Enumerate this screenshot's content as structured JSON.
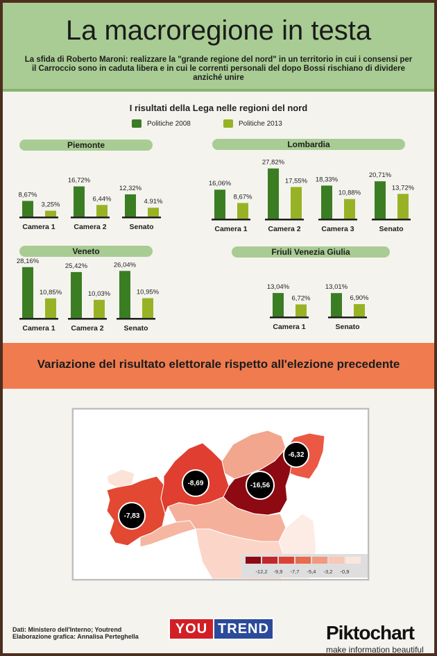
{
  "header": {
    "title": "La macroregione in testa",
    "subtitle": "La sfida di Roberto Maroni: realizzare la \"grande regione del nord\" in un territorio in cui i consensi per il Carroccio sono in caduta libera e in cui le correnti personali del dopo Bossi rischiano di dividere anziché unire"
  },
  "results": {
    "title": "I risultati della Lega nelle regioni del nord",
    "legend": [
      {
        "label": "Politiche 2008",
        "color": "#3b7d23"
      },
      {
        "label": "Politiche 2013",
        "color": "#98b225"
      }
    ]
  },
  "chart_data": [
    {
      "type": "bar",
      "title": "Piemonte",
      "categories": [
        "Camera 1",
        "Camera 2",
        "Senato"
      ],
      "series": [
        {
          "name": "Politiche 2008",
          "values": [
            8.67,
            16.72,
            12.32
          ],
          "labels": [
            "8,67%",
            "16,72%",
            "12,32%"
          ]
        },
        {
          "name": "Politiche 2013",
          "values": [
            3.25,
            6.44,
            4.91
          ],
          "labels": [
            "3,25%",
            "6,44%",
            "4.91%"
          ]
        }
      ]
    },
    {
      "type": "bar",
      "title": "Lombardia",
      "categories": [
        "Camera 1",
        "Camera 2",
        "Camera 3",
        "Senato"
      ],
      "series": [
        {
          "name": "Politiche 2008",
          "values": [
            16.06,
            27.82,
            18.33,
            20.71
          ],
          "labels": [
            "16,06%",
            "27,82%",
            "18,33%",
            "20,71%"
          ]
        },
        {
          "name": "Politiche 2013",
          "values": [
            8.67,
            17.55,
            10.88,
            13.72
          ],
          "labels": [
            "8,67%",
            "17,55%",
            "10,88%",
            "13,72%"
          ]
        }
      ]
    },
    {
      "type": "bar",
      "title": "Veneto",
      "categories": [
        "Camera 1",
        "Camera 2",
        "Senato"
      ],
      "series": [
        {
          "name": "Politiche 2008",
          "values": [
            28.16,
            25.42,
            26.04
          ],
          "labels": [
            "28,16%",
            "25,42%",
            "26,04%"
          ]
        },
        {
          "name": "Politiche 2013",
          "values": [
            10.85,
            10.03,
            10.95
          ],
          "labels": [
            "10,85%",
            "10,03%",
            "10,95%"
          ]
        }
      ]
    },
    {
      "type": "bar",
      "title": "Friuli Venezia Giulia",
      "categories": [
        "Camera 1",
        "Senato"
      ],
      "series": [
        {
          "name": "Politiche 2008",
          "values": [
            13.04,
            13.01
          ],
          "labels": [
            "13,04%",
            "13,01%"
          ]
        },
        {
          "name": "Politiche 2013",
          "values": [
            6.72,
            6.9
          ],
          "labels": [
            "6,72%",
            "6,90%"
          ]
        }
      ]
    }
  ],
  "variation": {
    "title": "Variazione del risultato elettorale rispetto all'elezione precedente",
    "regions": [
      {
        "region": "Piemonte",
        "label": "-7,83",
        "value": -7.83
      },
      {
        "region": "Lombardia",
        "label": "-8,69",
        "value": -8.69
      },
      {
        "region": "Veneto",
        "label": "-16,56",
        "value": -16.56
      },
      {
        "region": "Friuli Venezia Giulia",
        "label": "-6,32",
        "value": -6.32
      }
    ],
    "scale": {
      "labels": [
        "-12,2",
        "-9,9",
        "-7,7",
        "-5,4",
        "-3,2",
        "-0,9"
      ],
      "colors": [
        "#8e0a12",
        "#c1272b",
        "#dc4233",
        "#ea6a4d",
        "#f19a80",
        "#f8c7b6",
        "#fbe6df"
      ]
    }
  },
  "footer": {
    "credits_line1": "Dati: Ministero dell'Interno; Youtrend",
    "credits_line2": "Elaborazione grafica: Annalisa Perteghella",
    "brand_a": "YOU",
    "brand_b": "TREND",
    "pikto": "Piktochart",
    "pikto_sub": "make information beautiful"
  }
}
